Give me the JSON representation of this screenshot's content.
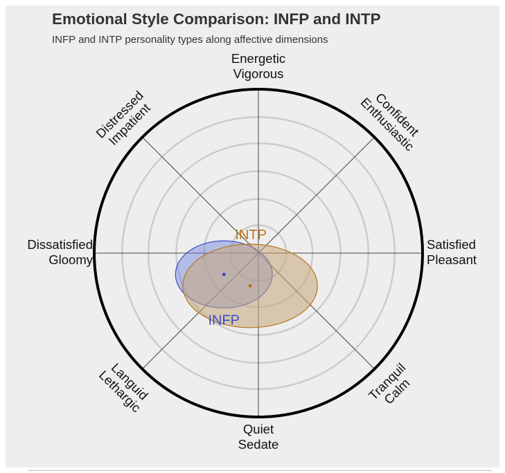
{
  "title": "Emotional Style Comparison: INFP and INTP",
  "subtitle": "INFP and INTP personality types along affective dimensions",
  "chart_data": {
    "type": "scatter",
    "title": "Emotional Style Comparison: INFP and INTP",
    "subtitle": "INFP and INTP personality types along affective dimensions",
    "axes": [
      {
        "direction": "N",
        "lines": [
          "Energetic",
          "Vigorous"
        ]
      },
      {
        "direction": "NE",
        "lines": [
          "Confident",
          "Enthusiastic"
        ]
      },
      {
        "direction": "E",
        "lines": [
          "Satisfied",
          "Pleasant"
        ]
      },
      {
        "direction": "SE",
        "lines": [
          "Tranquil",
          "Calm"
        ]
      },
      {
        "direction": "S",
        "lines": [
          "Quiet",
          "Sedate"
        ]
      },
      {
        "direction": "SW",
        "lines": [
          "Languid",
          "Lethargic"
        ]
      },
      {
        "direction": "W",
        "lines": [
          "Dissatisfied",
          "Gloomy"
        ]
      },
      {
        "direction": "NW",
        "lines": [
          "Distressed",
          "Impatient"
        ]
      }
    ],
    "x_range": [
      -1,
      1
    ],
    "y_range": [
      -1,
      1
    ],
    "rings": [
      0.17,
      0.33,
      0.5,
      0.67,
      0.83
    ],
    "series": [
      {
        "name": "INFP",
        "color": "#3b4fc4",
        "fill": "#6a7fdb",
        "center": [
          -0.21,
          -0.13
        ],
        "spread": [
          0.59,
          0.41
        ]
      },
      {
        "name": "INTP",
        "color": "#b8741a",
        "fill": "#c7a57a",
        "center": [
          -0.05,
          -0.2
        ],
        "spread": [
          0.82,
          0.51
        ]
      }
    ]
  }
}
